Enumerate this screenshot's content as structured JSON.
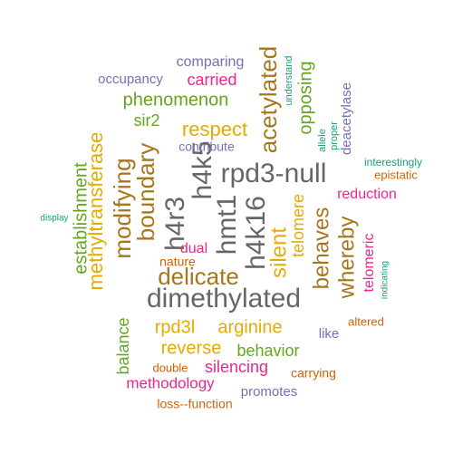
{
  "colors": {
    "gray": "#666666",
    "brown": "#a6761d",
    "orange": "#d95f02",
    "green": "#66a61e",
    "teal": "#1b9e77",
    "purple": "#7570b3",
    "magenta": "#e7298a",
    "gold": "#e6ab02"
  },
  "words": [
    {
      "text": "dimethylated",
      "color": "gray"
    },
    {
      "text": "rpd3-null",
      "color": "gray"
    },
    {
      "text": "h4k16",
      "color": "gray"
    },
    {
      "text": "hmt1",
      "color": "gray"
    },
    {
      "text": "h4k5",
      "color": "gray"
    },
    {
      "text": "h4r3",
      "color": "gray"
    },
    {
      "text": "delicate",
      "color": "brown"
    },
    {
      "text": "acetylated",
      "color": "brown"
    },
    {
      "text": "boundary",
      "color": "brown"
    },
    {
      "text": "modifying",
      "color": "brown"
    },
    {
      "text": "whereby",
      "color": "brown"
    },
    {
      "text": "behaves",
      "color": "brown"
    },
    {
      "text": "silent",
      "color": "gold"
    },
    {
      "text": "respect",
      "color": "gold"
    },
    {
      "text": "methyltransferase",
      "color": "gold"
    },
    {
      "text": "telomere",
      "color": "gold"
    },
    {
      "text": "arginine",
      "color": "gold"
    },
    {
      "text": "rpd3l",
      "color": "gold"
    },
    {
      "text": "reverse",
      "color": "gold"
    },
    {
      "text": "establishment",
      "color": "green"
    },
    {
      "text": "phenomenon",
      "color": "green"
    },
    {
      "text": "opposing",
      "color": "green"
    },
    {
      "text": "sir2",
      "color": "green"
    },
    {
      "text": "behavior",
      "color": "green"
    },
    {
      "text": "balance",
      "color": "green"
    },
    {
      "text": "carried",
      "color": "magenta"
    },
    {
      "text": "reduction",
      "color": "magenta"
    },
    {
      "text": "telomeric",
      "color": "magenta"
    },
    {
      "text": "dual",
      "color": "magenta"
    },
    {
      "text": "silencing",
      "color": "magenta"
    },
    {
      "text": "methodology",
      "color": "magenta"
    },
    {
      "text": "comparing",
      "color": "purple"
    },
    {
      "text": "occupancy",
      "color": "purple"
    },
    {
      "text": "contribute",
      "color": "purple"
    },
    {
      "text": "deacetylase",
      "color": "purple"
    },
    {
      "text": "like",
      "color": "purple"
    },
    {
      "text": "promotes",
      "color": "purple"
    },
    {
      "text": "understand",
      "color": "teal"
    },
    {
      "text": "allele",
      "color": "teal"
    },
    {
      "text": "proper",
      "color": "teal"
    },
    {
      "text": "interestingly",
      "color": "teal"
    },
    {
      "text": "display",
      "color": "teal"
    },
    {
      "text": "indicating",
      "color": "teal"
    },
    {
      "text": "epistatic",
      "color": "orange"
    },
    {
      "text": "nature",
      "color": "orange"
    },
    {
      "text": "altered",
      "color": "orange"
    },
    {
      "text": "double",
      "color": "orange"
    },
    {
      "text": "carrying",
      "color": "orange"
    },
    {
      "text": "loss--function",
      "color": "orange"
    }
  ]
}
